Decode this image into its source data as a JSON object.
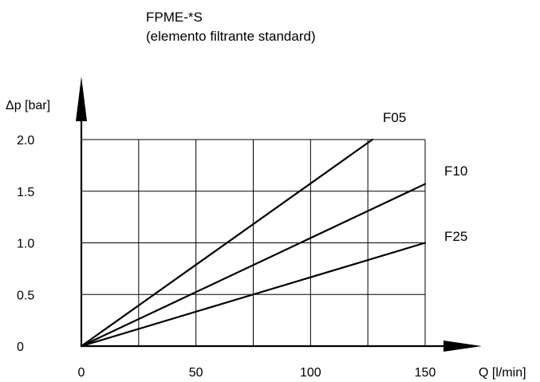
{
  "chart_data": {
    "type": "line",
    "title": "FPME-*S",
    "subtitle": "(elemento filtrante standard)",
    "xlabel": "Q [l/min]",
    "ylabel": "Δp [bar]",
    "xlim": [
      0,
      150
    ],
    "ylim": [
      0,
      2.0
    ],
    "x_ticks": [
      "0",
      "50",
      "100",
      "150"
    ],
    "y_ticks": [
      "0",
      "0.5",
      "1.0",
      "1.5",
      "2.0"
    ],
    "x_tick_values": [
      0,
      50,
      100,
      150
    ],
    "y_tick_values": [
      0,
      0.5,
      1.0,
      1.5,
      2.0
    ],
    "grid": true,
    "grid_x_step": 25,
    "grid_y_step": 0.5,
    "legend": "inline",
    "series": [
      {
        "name": "F05",
        "x": [
          0,
          127
        ],
        "y": [
          0,
          2.0
        ]
      },
      {
        "name": "F10",
        "x": [
          0,
          150
        ],
        "y": [
          0,
          1.57
        ]
      },
      {
        "name": "F25",
        "x": [
          0,
          150
        ],
        "y": [
          0,
          1.0
        ]
      }
    ],
    "colors": {
      "line": "#000000",
      "grid": "#000000"
    }
  }
}
